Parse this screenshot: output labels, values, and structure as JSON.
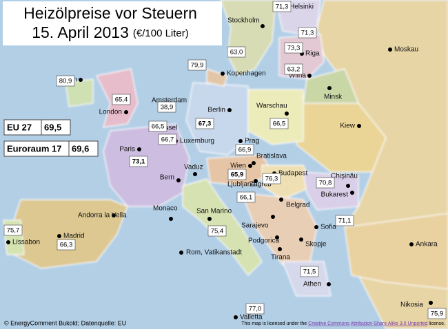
{
  "title": {
    "line1": "Heizölpreise vor Steuern",
    "line2": "15. April 2013",
    "unit": "(€/100 Liter)"
  },
  "summary": [
    {
      "label": "EU 27",
      "value": "69,5"
    },
    {
      "label": "Euroraum 17",
      "value": "69,6"
    }
  ],
  "prices": [
    "71,3",
    "71,3",
    "63,0",
    "73,3",
    "79,9",
    "63,2",
    "80,9",
    "65,4",
    "38,9",
    "66,5",
    "67,3",
    "66,5",
    "66,7",
    "66,9",
    "73,1",
    "65,9",
    "76,3",
    "70,8",
    "66,1",
    "71,1",
    "75,7",
    "66,3",
    "75,4",
    "71,5",
    "77,0",
    "75,9"
  ],
  "cities": [
    "Stockholm",
    "Helsinki",
    "Riga",
    "Moskau",
    "Kopenhagen",
    "Wilna",
    "Minsk",
    "Dublin",
    "London",
    "Amsterdam",
    "Berlin",
    "Warschau",
    "Kiew",
    "Brüssel",
    "Luxemburg",
    "Prag",
    "Bratislava",
    "Wien",
    "Budapest",
    "Chişinău",
    "Paris",
    "Bern",
    "Vaduz",
    "Ljubljana",
    "Zagreb",
    "Bukarest",
    "Monaco",
    "San Marino",
    "Andorra la Vella",
    "Belgrad",
    "Sarajevo",
    "Sofia",
    "Podgorica",
    "Skopje",
    "Tirana",
    "Madrid",
    "Lissabon",
    "Rom, Vatikanstadt",
    "Ankara",
    "Athen",
    "Nikosia",
    "Valletta"
  ],
  "footer": {
    "source": "© EnergyComment Bukold; Datenquelle: EU",
    "license": [
      "This map is licensed under the",
      "Creative Commons",
      "Attribution-Share Alike 3.0 Unported",
      "license."
    ]
  }
}
